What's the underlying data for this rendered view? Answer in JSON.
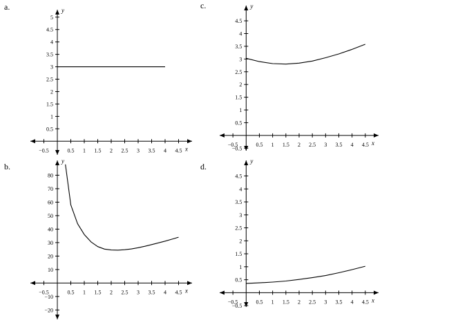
{
  "figure": {
    "colors": {
      "background": "#ffffff",
      "ink": "#000000"
    }
  },
  "chart_data": [
    {
      "panel": "a.",
      "type": "line",
      "xlabel": "x",
      "ylabel": "y",
      "xlim": [
        -1,
        5
      ],
      "ylim": [
        -0.55,
        5.3
      ],
      "x_ticks": [
        -0.5,
        0.5,
        1,
        1.5,
        2,
        2.5,
        3,
        3.5,
        4,
        4.5
      ],
      "x_tick_labels": [
        "−0.5",
        "0.5",
        "1",
        "1.5",
        "2",
        "2.5",
        "3",
        "3.5",
        "4",
        "4.5"
      ],
      "y_ticks": [
        0.5,
        1,
        1.5,
        2,
        2.5,
        3,
        3.5,
        4,
        4.5,
        5
      ],
      "y_tick_labels": [
        "0.5",
        "1",
        "1.5",
        "2",
        "2.5",
        "3",
        "3.5",
        "4",
        "4.5",
        "5"
      ],
      "series": [
        {
          "x": [
            0,
            1,
            2,
            3,
            4
          ],
          "y": [
            3,
            3,
            3,
            3,
            3
          ]
        }
      ]
    },
    {
      "panel": "c.",
      "type": "line",
      "xlabel": "x",
      "ylabel": "y",
      "xlim": [
        -1,
        5
      ],
      "ylim": [
        -0.6,
        5.1
      ],
      "x_ticks": [
        -0.5,
        0.5,
        1,
        1.5,
        2,
        2.5,
        3,
        3.5,
        4,
        4.5
      ],
      "x_tick_labels": [
        "−0.5",
        "0.5",
        "1",
        "1.5",
        "2",
        "2.5",
        "3",
        "3.5",
        "4",
        "4.5"
      ],
      "y_ticks": [
        -0.5,
        0.5,
        1,
        1.5,
        2,
        2.5,
        3,
        3.5,
        4,
        4.5
      ],
      "y_tick_labels": [
        "−0.5",
        "0.5",
        "1",
        "1.5",
        "2",
        "2.5",
        "3",
        "3.5",
        "4",
        "4.5"
      ],
      "series": [
        {
          "x": [
            0,
            0.5,
            1,
            1.5,
            2,
            2.5,
            3,
            3.5,
            4,
            4.5
          ],
          "y": [
            3.03,
            2.9,
            2.82,
            2.8,
            2.84,
            2.92,
            3.05,
            3.2,
            3.38,
            3.58
          ]
        }
      ]
    },
    {
      "panel": "b.",
      "type": "line",
      "xlabel": "x",
      "ylabel": "y",
      "xlim": [
        -1,
        5
      ],
      "ylim": [
        -27,
        91
      ],
      "x_ticks": [
        -0.5,
        0.5,
        1,
        1.5,
        2,
        2.5,
        3,
        3.5,
        4,
        4.5
      ],
      "x_tick_labels": [
        "−0.5",
        "0.5",
        "1",
        "1.5",
        "2",
        "2.5",
        "3",
        "3.5",
        "4",
        "4.5"
      ],
      "y_ticks": [
        -20,
        -10,
        10,
        20,
        30,
        40,
        50,
        60,
        70,
        80
      ],
      "y_tick_labels": [
        "−20",
        "−10",
        "10",
        "20",
        "30",
        "40",
        "50",
        "60",
        "70",
        "80"
      ],
      "series": [
        {
          "x": [
            0.3,
            0.5,
            0.75,
            1,
            1.25,
            1.5,
            1.75,
            2,
            2.25,
            2.5,
            2.75,
            3,
            3.25,
            3.5,
            3.75,
            4,
            4.25,
            4.5
          ],
          "y": [
            88,
            58,
            44,
            36,
            30.5,
            27,
            25.2,
            24.5,
            24.4,
            24.7,
            25.3,
            26.2,
            27.3,
            28.5,
            29.8,
            31.1,
            32.5,
            34
          ]
        }
      ]
    },
    {
      "panel": "d.",
      "type": "line",
      "xlabel": "x",
      "ylabel": "y",
      "xlim": [
        -1,
        5
      ],
      "ylim": [
        -0.55,
        5.1
      ],
      "x_ticks": [
        -0.5,
        0.5,
        1,
        1.5,
        2,
        2.5,
        3,
        3.5,
        4,
        4.5
      ],
      "x_tick_labels": [
        "−0.5",
        "0.5",
        "1",
        "1.5",
        "2",
        "2.5",
        "3",
        "3.5",
        "4",
        "4.5"
      ],
      "y_ticks": [
        -0.5,
        0.5,
        1,
        1.5,
        2,
        2.5,
        3,
        3.5,
        4,
        4.5
      ],
      "y_tick_labels": [
        "−0.5",
        "0.5",
        "1",
        "1.5",
        "2",
        "2.5",
        "3",
        "3.5",
        "4",
        "4.5"
      ],
      "series": [
        {
          "x": [
            0,
            0.5,
            1,
            1.5,
            2,
            2.5,
            3,
            3.5,
            4,
            4.5
          ],
          "y": [
            0.36,
            0.38,
            0.41,
            0.45,
            0.51,
            0.58,
            0.66,
            0.77,
            0.89,
            1.02
          ]
        }
      ]
    }
  ]
}
